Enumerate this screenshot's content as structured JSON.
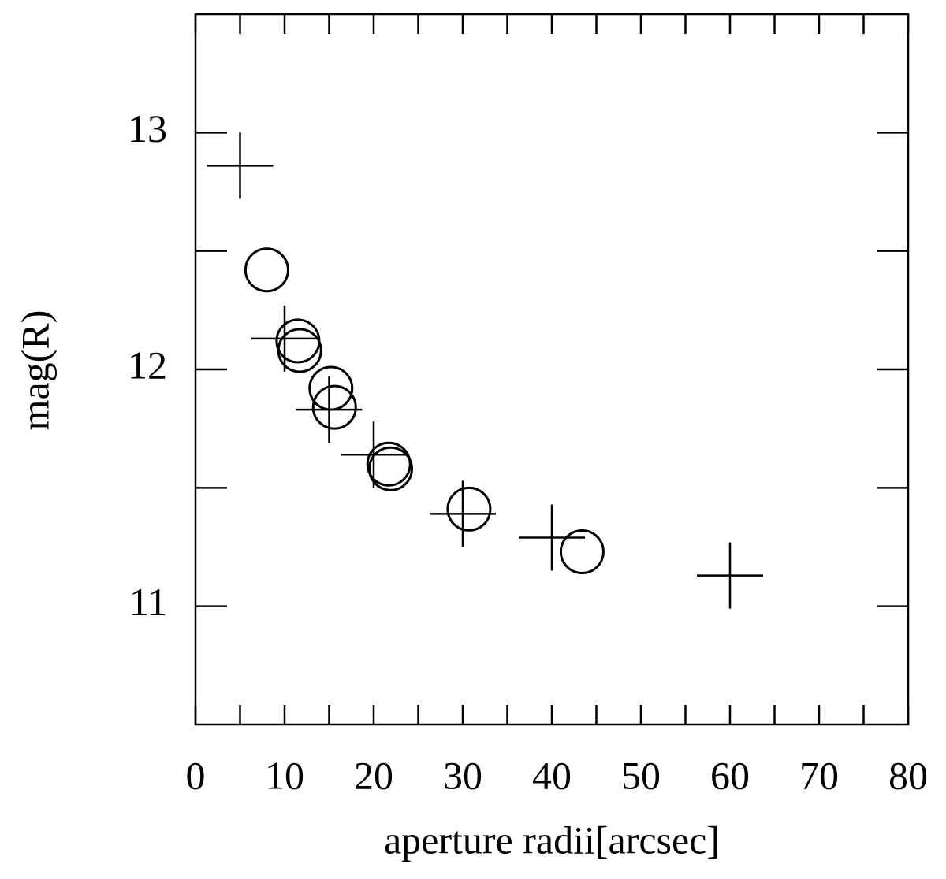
{
  "chart_data": {
    "type": "scatter",
    "x_label": "aperture radii[arcsec]",
    "y_label": "mag(R)",
    "xlim": [
      0,
      80
    ],
    "xticks": [
      0,
      10,
      20,
      30,
      40,
      50,
      60,
      70,
      80
    ],
    "xminor_ticks": [
      5,
      15,
      25,
      35,
      45,
      55,
      65,
      75
    ],
    "ylim": [
      10.5,
      13.5
    ],
    "yticks": [
      11,
      12,
      13
    ],
    "yminor_ticks": [
      11.5,
      12.5
    ],
    "series": [
      {
        "marker": "plus",
        "color": "#000000",
        "x": [
          5,
          10,
          15,
          20,
          30,
          40,
          60
        ],
        "values": [
          12.86,
          12.13,
          11.83,
          11.64,
          11.39,
          11.29,
          11.13
        ]
      },
      {
        "marker": "circle",
        "color": "#000000",
        "x": [
          8,
          11.5,
          11.7,
          15.2,
          15.6,
          21.7,
          21.9,
          30.7,
          43.4
        ],
        "values": [
          12.42,
          12.12,
          12.08,
          11.92,
          11.84,
          11.6,
          11.58,
          11.41,
          11.23
        ]
      }
    ]
  }
}
